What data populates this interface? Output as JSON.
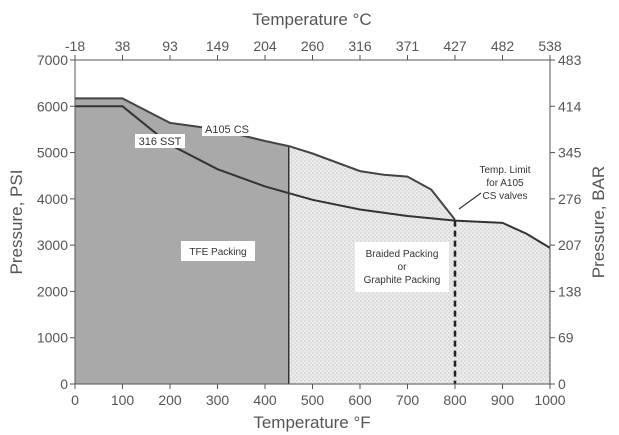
{
  "chart_data": {
    "type": "area",
    "top_axis_title": "Temperature °C",
    "bottom_axis_title": "Temperature °F",
    "left_axis_title": "Pressure, PSI",
    "right_axis_title": "Pressure, BAR",
    "xlim": [
      0,
      1000
    ],
    "ylim": [
      0,
      7000
    ],
    "x_ticks": [
      0,
      100,
      200,
      300,
      400,
      500,
      600,
      700,
      800,
      900,
      1000
    ],
    "y_ticks": [
      0,
      1000,
      2000,
      3000,
      4000,
      5000,
      6000,
      7000
    ],
    "top_ticks": [
      {
        "x": 0,
        "label": "-18"
      },
      {
        "x": 100,
        "label": "38"
      },
      {
        "x": 200,
        "label": "93"
      },
      {
        "x": 300,
        "label": "149"
      },
      {
        "x": 400,
        "label": "204"
      },
      {
        "x": 500,
        "label": "260"
      },
      {
        "x": 600,
        "label": "316"
      },
      {
        "x": 700,
        "label": "371"
      },
      {
        "x": 800,
        "label": "427"
      },
      {
        "x": 900,
        "label": "482"
      },
      {
        "x": 1000,
        "label": "538"
      }
    ],
    "right_ticks": [
      {
        "y": 0,
        "label": "0"
      },
      {
        "y": 1000,
        "label": "69"
      },
      {
        "y": 2000,
        "label": "138"
      },
      {
        "y": 3000,
        "label": "207"
      },
      {
        "y": 4000,
        "label": "276"
      },
      {
        "y": 5000,
        "label": "345"
      },
      {
        "y": 6000,
        "label": "414"
      },
      {
        "y": 7000,
        "label": "483"
      }
    ],
    "series": [
      {
        "name": "A105 CS",
        "x": [
          0,
          100,
          200,
          300,
          400,
          450,
          500,
          600,
          650,
          700,
          750,
          800
        ],
        "y": [
          6170,
          6170,
          5640,
          5500,
          5250,
          5140,
          4980,
          4600,
          4520,
          4480,
          4200,
          3550
        ]
      },
      {
        "name": "316 SST",
        "x": [
          0,
          100,
          200,
          300,
          400,
          500,
          600,
          700,
          800,
          900,
          950,
          1000
        ],
        "y": [
          6000,
          6000,
          5170,
          4640,
          4270,
          3980,
          3770,
          3630,
          3530,
          3480,
          3250,
          2940
        ]
      }
    ],
    "regions": [
      {
        "label": "TFE Packing",
        "x_range": [
          0,
          450
        ]
      },
      {
        "label_lines": [
          "Braided Packing",
          "or",
          "Graphite Packing"
        ],
        "x_range": [
          450,
          1000
        ]
      }
    ],
    "annotations": [
      {
        "label_lines": [
          "Temp. Limit",
          "for A105",
          "CS valves"
        ],
        "x": 800
      }
    ]
  }
}
